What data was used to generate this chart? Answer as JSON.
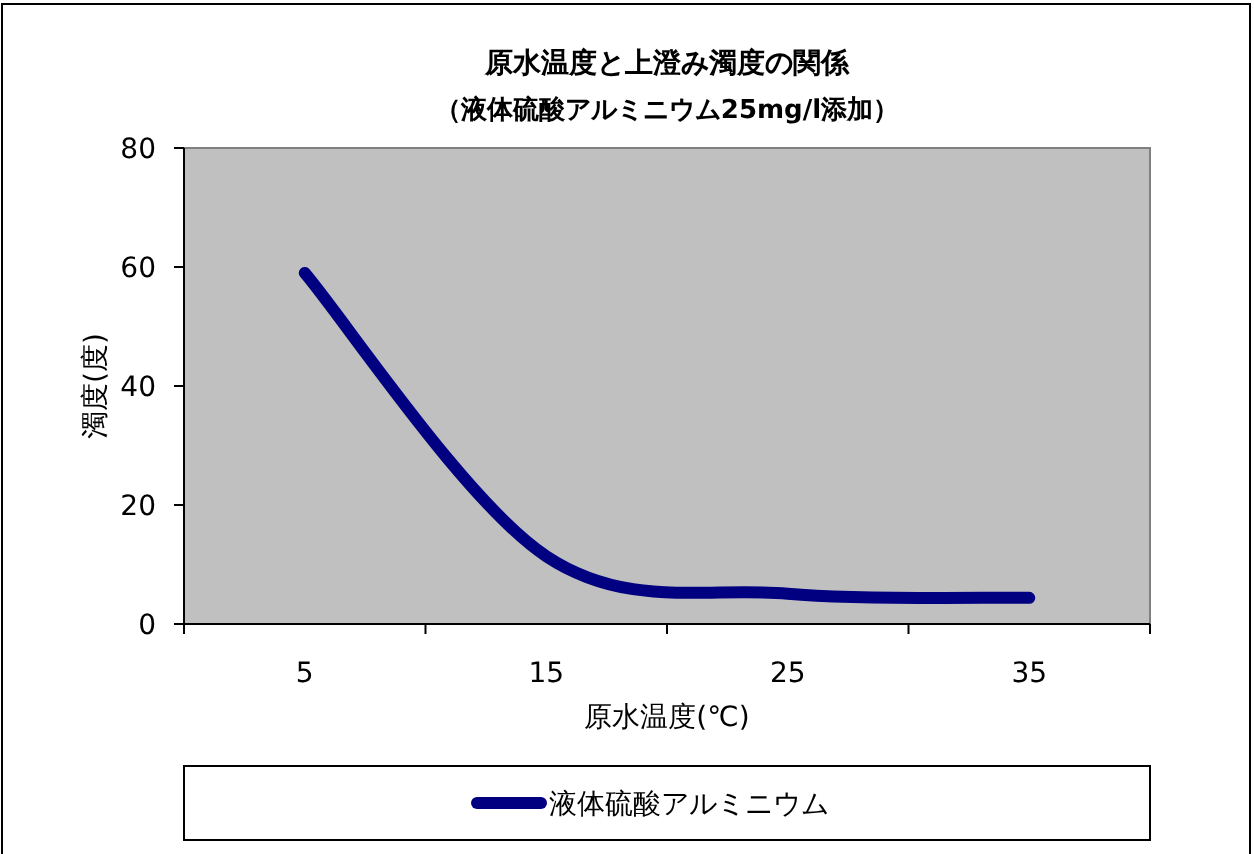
{
  "chart_data": {
    "type": "line",
    "title": "原水温度と上澄み濁度の関係",
    "subtitle": "（液体硫酸アルミニウム25mg/l添加）",
    "xlabel": "原水温度(℃)",
    "ylabel": "濁度(度)",
    "categories": [
      "5",
      "15",
      "25",
      "35"
    ],
    "series": [
      {
        "name": "液体硫酸アルミニウム",
        "color": "#000080",
        "values": [
          59,
          11.4,
          5.1,
          4.4
        ]
      }
    ],
    "ylim": [
      0,
      80
    ],
    "yticks": [
      0,
      20,
      40,
      60,
      80
    ],
    "legend": "bottom",
    "marker": "none",
    "line_style": "solid"
  }
}
